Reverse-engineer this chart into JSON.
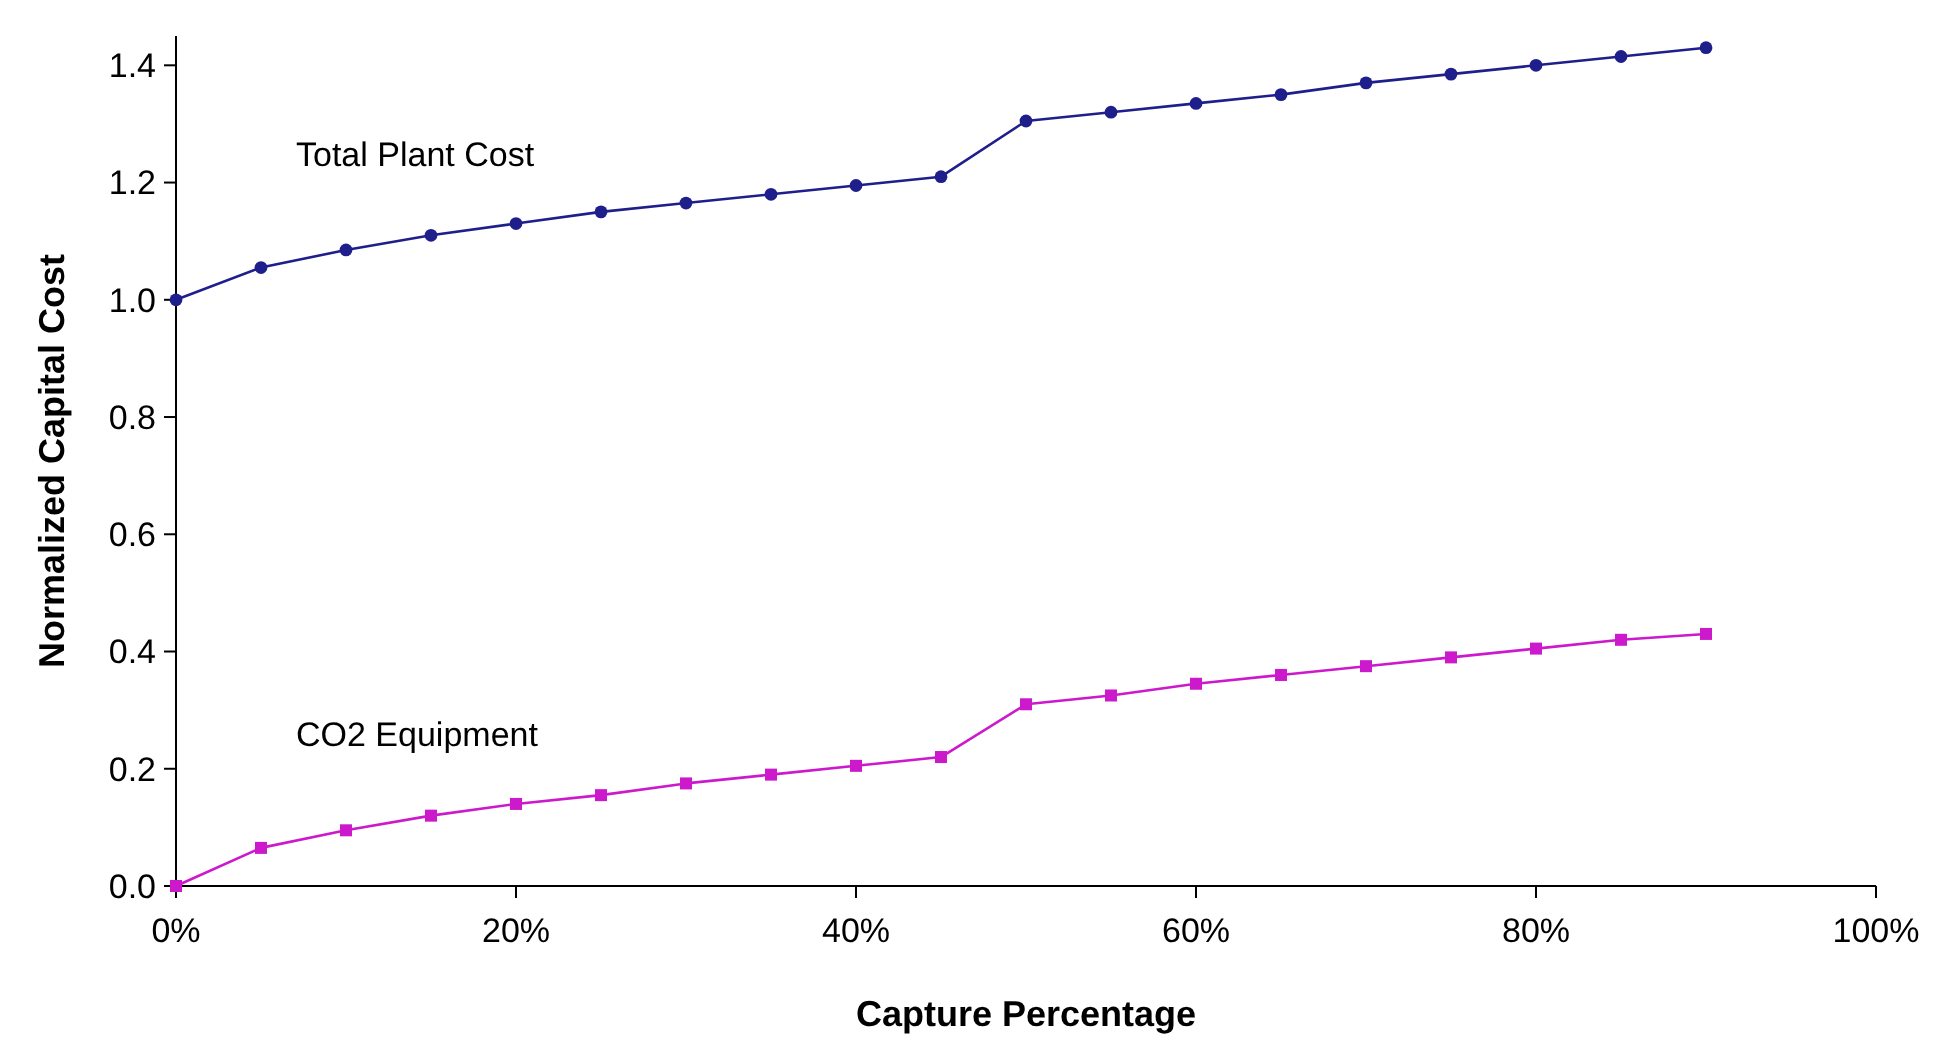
{
  "chart_data": {
    "type": "line",
    "xlabel": "Capture Percentage",
    "ylabel": "Normalized Capital Cost",
    "x": [
      0,
      5,
      10,
      15,
      20,
      25,
      30,
      35,
      40,
      45,
      50,
      55,
      60,
      65,
      70,
      75,
      80,
      85,
      90
    ],
    "xlim": [
      0,
      100
    ],
    "xticks": [
      {
        "value": 0,
        "label": "0%"
      },
      {
        "value": 20,
        "label": "20%"
      },
      {
        "value": 40,
        "label": "40%"
      },
      {
        "value": 60,
        "label": "60%"
      },
      {
        "value": 80,
        "label": "80%"
      },
      {
        "value": 100,
        "label": "100%"
      }
    ],
    "ylim": [
      0,
      1.45
    ],
    "yticks": [
      {
        "value": 0,
        "label": "0.0"
      },
      {
        "value": 0.2,
        "label": "0.2"
      },
      {
        "value": 0.4,
        "label": "0.4"
      },
      {
        "value": 0.6,
        "label": "0.6"
      },
      {
        "value": 0.8,
        "label": "0.8"
      },
      {
        "value": 1,
        "label": "1.0"
      },
      {
        "value": 1.2,
        "label": "1.2"
      },
      {
        "value": 1.4,
        "label": "1.4"
      }
    ],
    "grid": false,
    "line_style": "solid",
    "series": [
      {
        "name": "Total Plant Cost",
        "color": "#1f1f8c",
        "marker": "circle",
        "values": [
          1.0,
          1.055,
          1.085,
          1.11,
          1.13,
          1.15,
          1.165,
          1.18,
          1.195,
          1.21,
          1.305,
          1.32,
          1.335,
          1.35,
          1.37,
          1.385,
          1.4,
          1.415,
          1.43
        ]
      },
      {
        "name": "CO2 Equipment",
        "color": "#cc19cc",
        "marker": "square",
        "values": [
          0,
          0.065,
          0.095,
          0.12,
          0.14,
          0.155,
          0.175,
          0.19,
          0.205,
          0.22,
          0.31,
          0.325,
          0.345,
          0.36,
          0.375,
          0.39,
          0.405,
          0.42,
          0.43
        ]
      }
    ]
  }
}
